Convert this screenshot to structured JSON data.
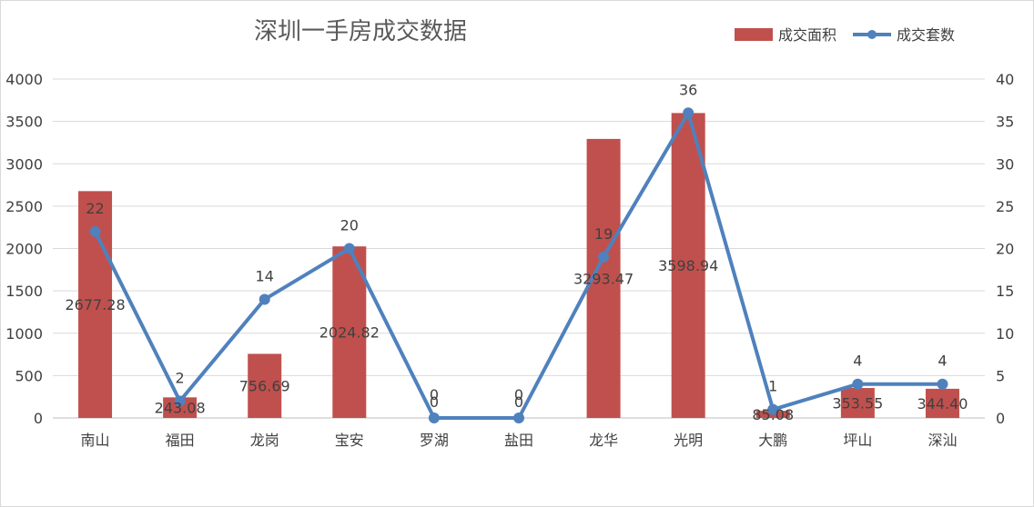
{
  "chart_data": {
    "type": "bar",
    "title": "深圳一手房成交数据",
    "categories": [
      "南山",
      "福田",
      "龙岗",
      "宝安",
      "罗湖",
      "盐田",
      "龙华",
      "光明",
      "大鹏",
      "坪山",
      "深汕"
    ],
    "series": [
      {
        "name": "成交面积",
        "type": "bar",
        "axis": "left",
        "values": [
          2677.28,
          243.08,
          756.69,
          2024.82,
          0,
          0,
          3293.47,
          3598.94,
          85.08,
          353.55,
          344.4
        ],
        "labels": [
          "2677.28",
          "243.08",
          "756.69",
          "2024.82",
          "0",
          "0",
          "3293.47",
          "3598.94",
          "85.08",
          "353.55",
          "344.40"
        ],
        "color": "#c0504d"
      },
      {
        "name": "成交套数",
        "type": "line",
        "axis": "right",
        "values": [
          22,
          2,
          14,
          20,
          0,
          0,
          19,
          36,
          1,
          4,
          4
        ],
        "labels": [
          "22",
          "2",
          "14",
          "20",
          "0",
          "0",
          "19",
          "36",
          "1",
          "4",
          "4"
        ],
        "color": "#4f81bd"
      }
    ],
    "y_left": {
      "min": 0,
      "max": 4000,
      "ticks": [
        "0",
        "500",
        "1000",
        "1500",
        "2000",
        "2500",
        "3000",
        "3500",
        "4000"
      ]
    },
    "y_right": {
      "min": 0,
      "max": 40,
      "ticks": [
        "0",
        "5",
        "10",
        "15",
        "20",
        "25",
        "30",
        "35",
        "40"
      ]
    },
    "grid": true,
    "legend": "top-right"
  }
}
